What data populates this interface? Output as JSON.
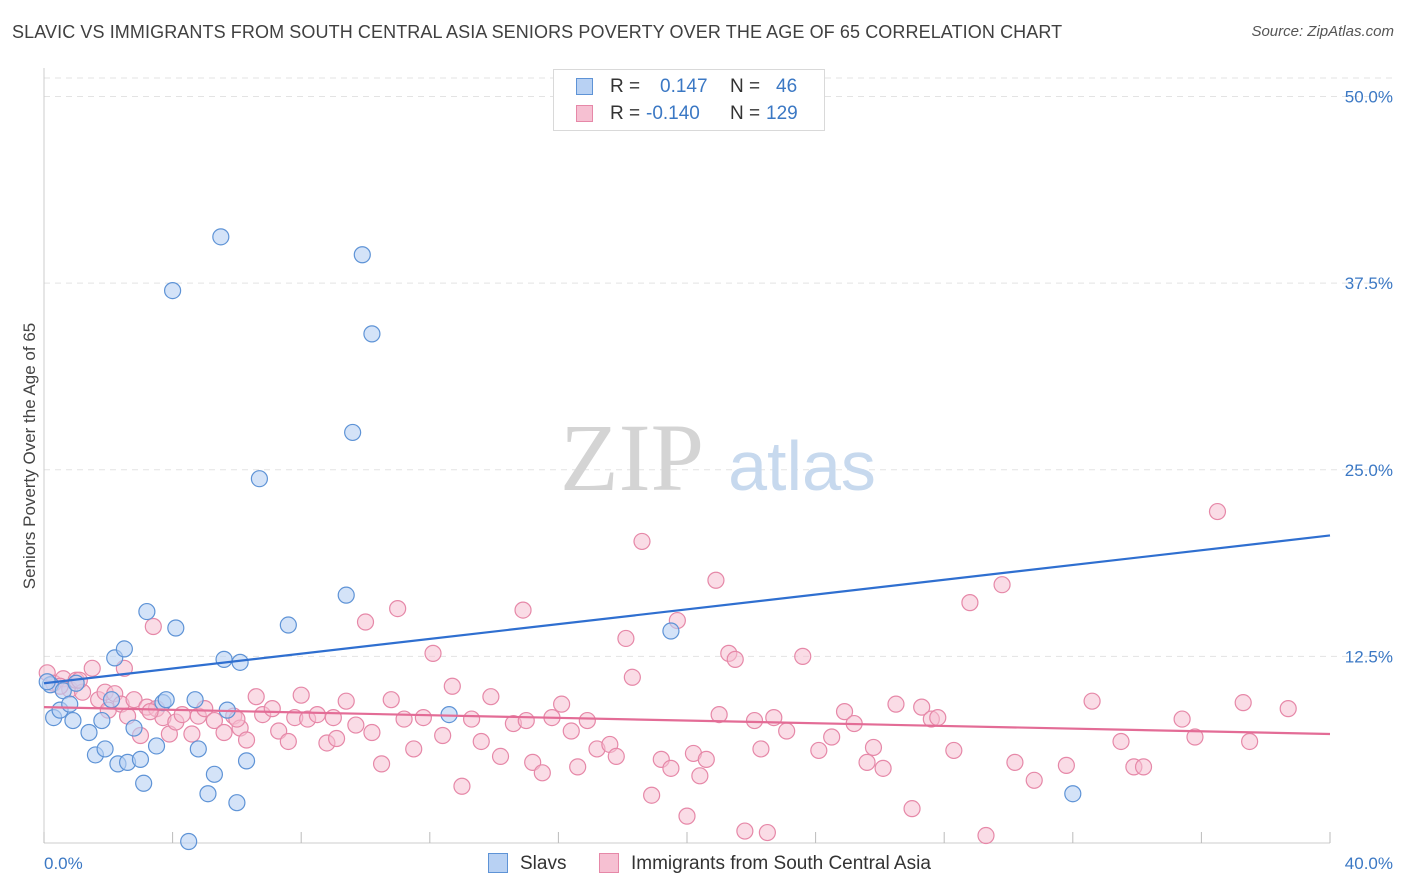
{
  "title": "SLAVIC VS IMMIGRANTS FROM SOUTH CENTRAL ASIA SENIORS POVERTY OVER THE AGE OF 65 CORRELATION CHART",
  "source": "Source: ZipAtlas.com",
  "watermark": {
    "zip": "ZIP",
    "atlas": "atlas"
  },
  "legend": {
    "slavs": {
      "r_label": "R =",
      "r_value": "0.147",
      "n_label": "N =",
      "n_value": "46"
    },
    "immigrants": {
      "r_label": "R =",
      "r_value": "-0.140",
      "n_label": "N =",
      "n_value": "129"
    }
  },
  "bottom_legend": {
    "slavs": "Slavs",
    "immigrants": "Immigrants from South Central Asia"
  },
  "colors": {
    "slavs_fill": "#b8d1f3",
    "slavs_stroke": "#5e93d6",
    "slavs_line": "#2f6fd0",
    "imm_fill": "#f6c0d2",
    "imm_stroke": "#e688a8",
    "imm_line": "#e36c96",
    "tick_label": "#3b78c4",
    "grid": "#e3e3e3"
  },
  "chart_data": {
    "type": "scatter",
    "ylabel": "Seniors Poverty Over the Age of 65",
    "xlabel": "",
    "xlim": [
      0,
      40
    ],
    "ylim": [
      0,
      50
    ],
    "x_tick_labels": [
      "0.0%",
      "40.0%"
    ],
    "y_ticks": [
      12.5,
      25.0,
      37.5,
      50.0
    ],
    "y_tick_labels": [
      "12.5%",
      "25.0%",
      "37.5%",
      "50.0%"
    ],
    "grid": true,
    "legend_position": "top-center",
    "series": [
      {
        "name": "Slavs",
        "trend": {
          "x": [
            0,
            40
          ],
          "y": [
            10.7,
            20.6
          ]
        },
        "points": [
          [
            0.2,
            10.6
          ],
          [
            0.3,
            8.4
          ],
          [
            0.5,
            8.9
          ],
          [
            0.6,
            10.2
          ],
          [
            0.8,
            9.3
          ],
          [
            0.9,
            8.2
          ],
          [
            1.0,
            10.7
          ],
          [
            1.4,
            7.4
          ],
          [
            1.6,
            5.9
          ],
          [
            1.8,
            8.2
          ],
          [
            1.9,
            6.3
          ],
          [
            2.1,
            9.6
          ],
          [
            2.2,
            12.4
          ],
          [
            2.3,
            5.3
          ],
          [
            2.5,
            13.0
          ],
          [
            2.6,
            5.4
          ],
          [
            2.8,
            7.7
          ],
          [
            3.1,
            4.0
          ],
          [
            3.0,
            5.6
          ],
          [
            3.2,
            15.5
          ],
          [
            3.5,
            6.5
          ],
          [
            3.7,
            9.4
          ],
          [
            3.8,
            9.6
          ],
          [
            4.0,
            37.0
          ],
          [
            4.1,
            14.4
          ],
          [
            4.5,
            0.1
          ],
          [
            4.7,
            9.6
          ],
          [
            4.8,
            6.3
          ],
          [
            5.1,
            3.3
          ],
          [
            5.3,
            4.6
          ],
          [
            5.5,
            40.6
          ],
          [
            5.6,
            12.3
          ],
          [
            5.7,
            8.9
          ],
          [
            6.0,
            2.7
          ],
          [
            6.1,
            12.1
          ],
          [
            6.3,
            5.5
          ],
          [
            6.7,
            24.4
          ],
          [
            7.6,
            14.6
          ],
          [
            9.4,
            16.6
          ],
          [
            9.6,
            27.5
          ],
          [
            9.9,
            39.4
          ],
          [
            10.2,
            34.1
          ],
          [
            12.6,
            8.6
          ],
          [
            19.5,
            14.2
          ],
          [
            32.0,
            3.3
          ],
          [
            0.1,
            10.8
          ]
        ]
      },
      {
        "name": "Immigrants from South Central Asia",
        "trend": {
          "x": [
            0,
            40
          ],
          "y": [
            9.1,
            7.3
          ]
        },
        "points": [
          [
            0.1,
            11.4
          ],
          [
            0.3,
            10.7
          ],
          [
            0.6,
            11.0
          ],
          [
            0.8,
            10.3
          ],
          [
            1.0,
            10.9
          ],
          [
            1.2,
            10.1
          ],
          [
            1.5,
            11.7
          ],
          [
            1.7,
            9.6
          ],
          [
            1.9,
            10.1
          ],
          [
            2.0,
            8.9
          ],
          [
            2.2,
            10.0
          ],
          [
            2.4,
            9.3
          ],
          [
            2.5,
            11.7
          ],
          [
            2.6,
            8.5
          ],
          [
            2.8,
            9.6
          ],
          [
            3.0,
            7.2
          ],
          [
            3.2,
            9.1
          ],
          [
            3.4,
            14.5
          ],
          [
            3.5,
            9.0
          ],
          [
            3.7,
            8.4
          ],
          [
            3.9,
            7.3
          ],
          [
            4.1,
            8.1
          ],
          [
            4.3,
            8.6
          ],
          [
            4.6,
            7.3
          ],
          [
            4.8,
            8.5
          ],
          [
            5.0,
            9.0
          ],
          [
            5.3,
            8.2
          ],
          [
            5.6,
            7.4
          ],
          [
            5.9,
            8.5
          ],
          [
            6.1,
            7.7
          ],
          [
            6.3,
            6.9
          ],
          [
            6.6,
            9.8
          ],
          [
            6.8,
            8.6
          ],
          [
            7.1,
            9.0
          ],
          [
            7.3,
            7.5
          ],
          [
            7.6,
            6.8
          ],
          [
            7.8,
            8.4
          ],
          [
            8.0,
            9.9
          ],
          [
            8.2,
            8.3
          ],
          [
            8.5,
            8.6
          ],
          [
            8.8,
            6.7
          ],
          [
            9.1,
            7.0
          ],
          [
            9.4,
            9.5
          ],
          [
            9.7,
            7.9
          ],
          [
            10.0,
            14.8
          ],
          [
            10.2,
            7.4
          ],
          [
            10.5,
            5.3
          ],
          [
            10.8,
            9.6
          ],
          [
            11.0,
            15.7
          ],
          [
            11.2,
            8.3
          ],
          [
            11.5,
            6.3
          ],
          [
            11.8,
            8.4
          ],
          [
            12.1,
            12.7
          ],
          [
            12.4,
            7.2
          ],
          [
            12.7,
            10.5
          ],
          [
            13.0,
            3.8
          ],
          [
            13.3,
            8.3
          ],
          [
            13.6,
            6.8
          ],
          [
            13.9,
            9.8
          ],
          [
            14.2,
            5.8
          ],
          [
            14.6,
            8.0
          ],
          [
            14.9,
            15.6
          ],
          [
            15.2,
            5.4
          ],
          [
            15.5,
            4.7
          ],
          [
            15.8,
            8.4
          ],
          [
            16.1,
            9.3
          ],
          [
            16.4,
            7.5
          ],
          [
            16.6,
            5.1
          ],
          [
            16.9,
            8.2
          ],
          [
            17.2,
            6.3
          ],
          [
            17.6,
            6.6
          ],
          [
            17.8,
            5.8
          ],
          [
            18.1,
            13.7
          ],
          [
            18.3,
            11.1
          ],
          [
            18.6,
            20.2
          ],
          [
            18.9,
            3.2
          ],
          [
            19.2,
            5.6
          ],
          [
            19.5,
            5.0
          ],
          [
            19.7,
            14.9
          ],
          [
            20.0,
            1.8
          ],
          [
            20.2,
            6.0
          ],
          [
            20.4,
            4.5
          ],
          [
            20.6,
            5.6
          ],
          [
            20.9,
            17.6
          ],
          [
            21.0,
            8.6
          ],
          [
            21.3,
            12.7
          ],
          [
            21.5,
            12.3
          ],
          [
            21.8,
            0.8
          ],
          [
            22.1,
            8.2
          ],
          [
            22.3,
            6.3
          ],
          [
            22.5,
            0.7
          ],
          [
            22.7,
            8.4
          ],
          [
            23.1,
            7.5
          ],
          [
            23.6,
            12.5
          ],
          [
            24.1,
            6.2
          ],
          [
            24.5,
            7.1
          ],
          [
            24.9,
            8.8
          ],
          [
            25.2,
            8.0
          ],
          [
            25.6,
            5.4
          ],
          [
            25.8,
            6.4
          ],
          [
            26.1,
            5.0
          ],
          [
            26.5,
            9.3
          ],
          [
            27.0,
            2.3
          ],
          [
            27.3,
            9.1
          ],
          [
            27.6,
            8.3
          ],
          [
            28.3,
            6.2
          ],
          [
            28.8,
            16.1
          ],
          [
            29.3,
            0.5
          ],
          [
            29.8,
            17.3
          ],
          [
            30.2,
            5.4
          ],
          [
            30.8,
            4.2
          ],
          [
            31.8,
            5.2
          ],
          [
            32.6,
            9.5
          ],
          [
            33.5,
            6.8
          ],
          [
            33.9,
            5.1
          ],
          [
            34.2,
            5.1
          ],
          [
            35.4,
            8.3
          ],
          [
            35.8,
            7.1
          ],
          [
            36.5,
            22.2
          ],
          [
            37.3,
            9.4
          ],
          [
            37.5,
            6.8
          ],
          [
            38.7,
            9.0
          ],
          [
            0.5,
            10.5
          ],
          [
            1.1,
            10.9
          ],
          [
            3.3,
            8.8
          ],
          [
            6.0,
            8.3
          ],
          [
            9.0,
            8.4
          ],
          [
            15.0,
            8.2
          ],
          [
            27.8,
            8.4
          ]
        ]
      }
    ]
  }
}
